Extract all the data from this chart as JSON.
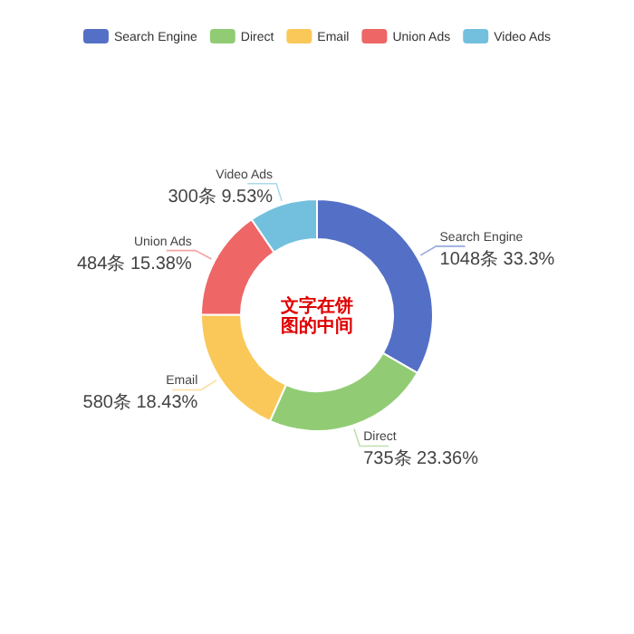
{
  "chart_data": {
    "type": "donut",
    "categories": [
      "Search Engine",
      "Direct",
      "Email",
      "Union Ads",
      "Video Ads"
    ],
    "values": [
      1048,
      735,
      580,
      484,
      300
    ],
    "colors": [
      "#5470c6",
      "#91cc75",
      "#fac858",
      "#ee6666",
      "#73c0de"
    ],
    "value_labels": [
      "1048条 33.3%",
      "735条 23.36%",
      "580条 18.43%",
      "484条 15.38%",
      "300条 9.53%"
    ],
    "legend": "top",
    "annotations": [
      "文字在饼图的中间"
    ]
  }
}
